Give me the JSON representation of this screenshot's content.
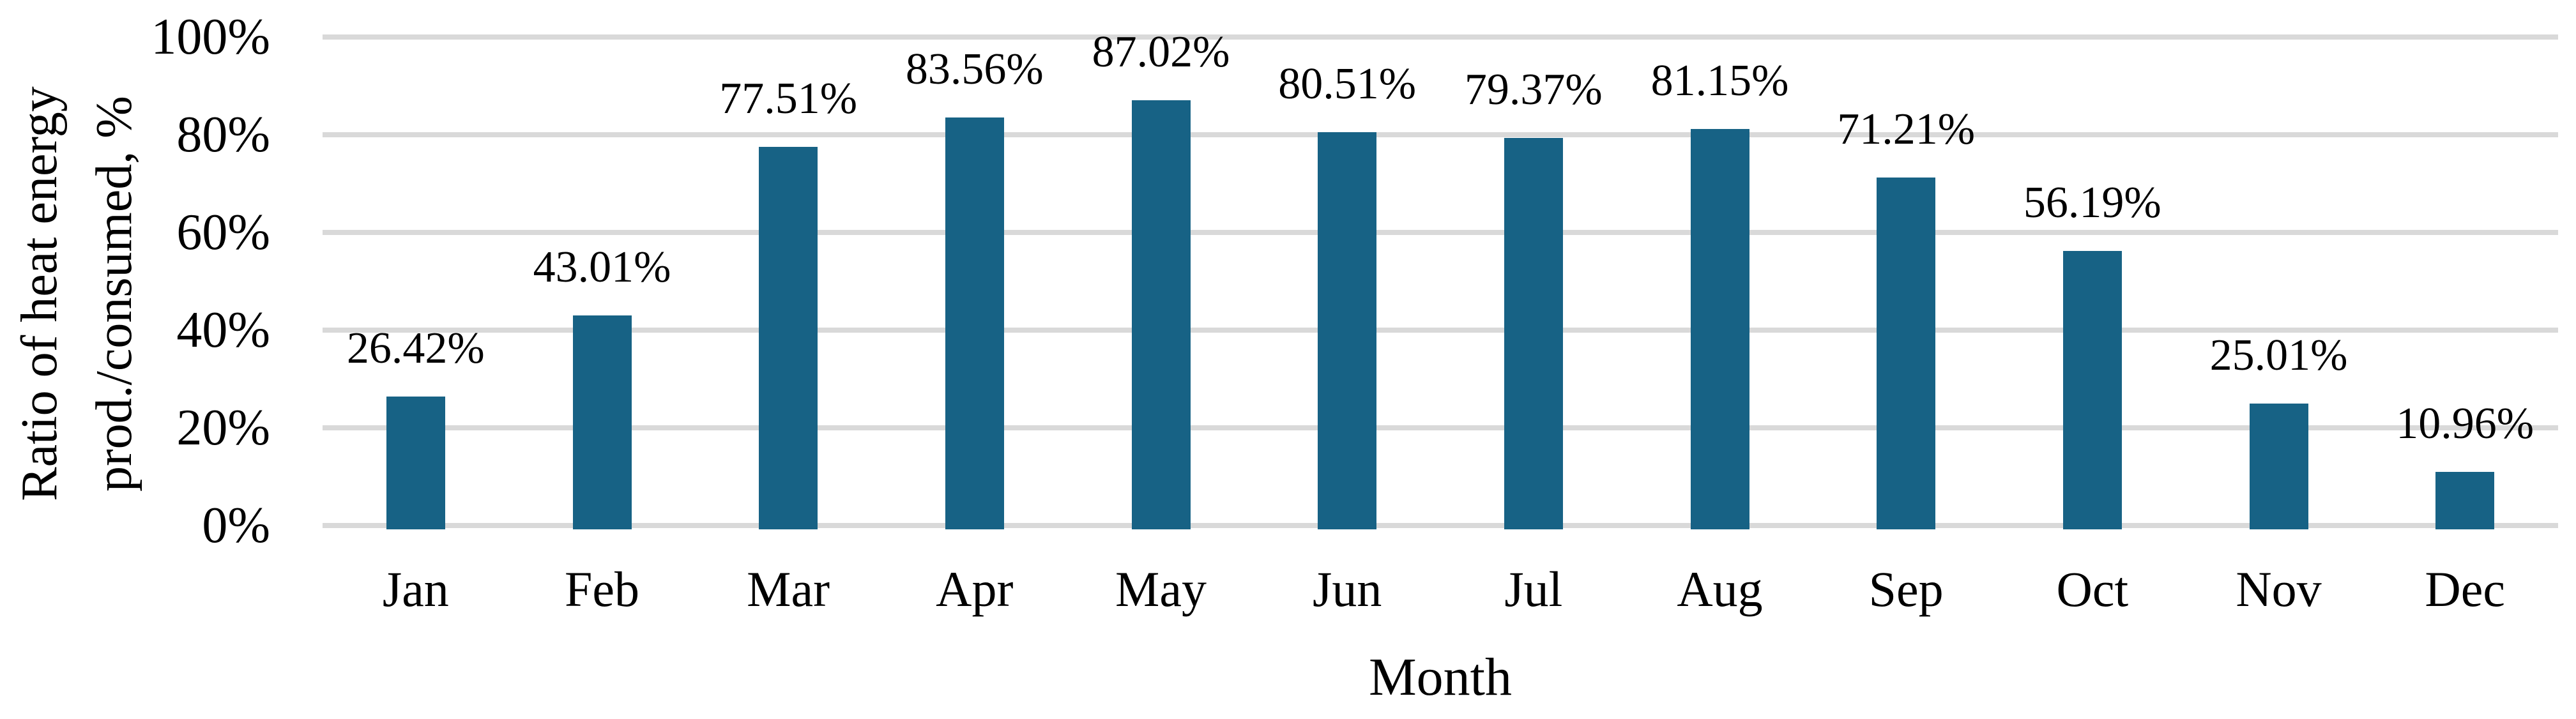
{
  "chart_data": {
    "type": "bar",
    "title": "",
    "categories": [
      "Jan",
      "Feb",
      "Mar",
      "Apr",
      "May",
      "Jun",
      "Jul",
      "Aug",
      "Sep",
      "Oct",
      "Nov",
      "Dec"
    ],
    "values": [
      26.42,
      43.01,
      77.51,
      83.56,
      87.02,
      80.51,
      79.37,
      81.15,
      71.21,
      56.19,
      25.01,
      10.96
    ],
    "data_labels": [
      "26.42%",
      "43.01%",
      "77.51%",
      "83.56%",
      "87.02%",
      "80.51%",
      "79.37%",
      "81.15%",
      "71.21%",
      "56.19%",
      "25.01%",
      "10.96%"
    ],
    "xlabel": "Month",
    "ylabel": "Ratio of heat energy prod./consumed, %",
    "ylabel_lines": [
      "Ratio of heat energy",
      "prod./consumed, %"
    ],
    "y_tick_values": [
      0,
      20,
      40,
      60,
      80,
      100
    ],
    "y_tick_labels": [
      "0%",
      "20%",
      "40%",
      "60%",
      "80%",
      "100%"
    ],
    "ylim": [
      0,
      100
    ],
    "grid": true,
    "legend_position": "none",
    "bar_color": "#176285",
    "gridline_color": "#D9D9D9",
    "text_color": "#000000",
    "background_color": "#FFFFFF"
  }
}
